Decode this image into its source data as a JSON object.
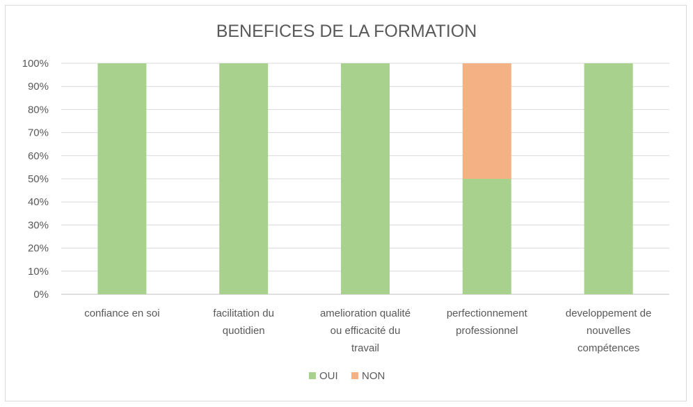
{
  "chart_data": {
    "type": "bar",
    "stacked": true,
    "title": "BENEFICES DE LA FORMATION",
    "xlabel": "",
    "ylabel": "",
    "ylim": [
      0,
      100
    ],
    "y_tick_step": 10,
    "y_tick_suffix": "%",
    "grid": true,
    "legend_position": "bottom",
    "categories": [
      [
        "confiance en soi"
      ],
      [
        "facilitation du",
        "quotidien"
      ],
      [
        "amelioration qualité",
        "ou efficacité du",
        "travail"
      ],
      [
        "perfectionnement",
        "professionnel"
      ],
      [
        "developpement de",
        "nouvelles",
        "compétences"
      ]
    ],
    "series": [
      {
        "name": "OUI",
        "color": "#a9d18e",
        "values": [
          100,
          100,
          100,
          50,
          100
        ]
      },
      {
        "name": "NON",
        "color": "#f4b183",
        "values": [
          0,
          0,
          0,
          50,
          0
        ]
      }
    ]
  }
}
